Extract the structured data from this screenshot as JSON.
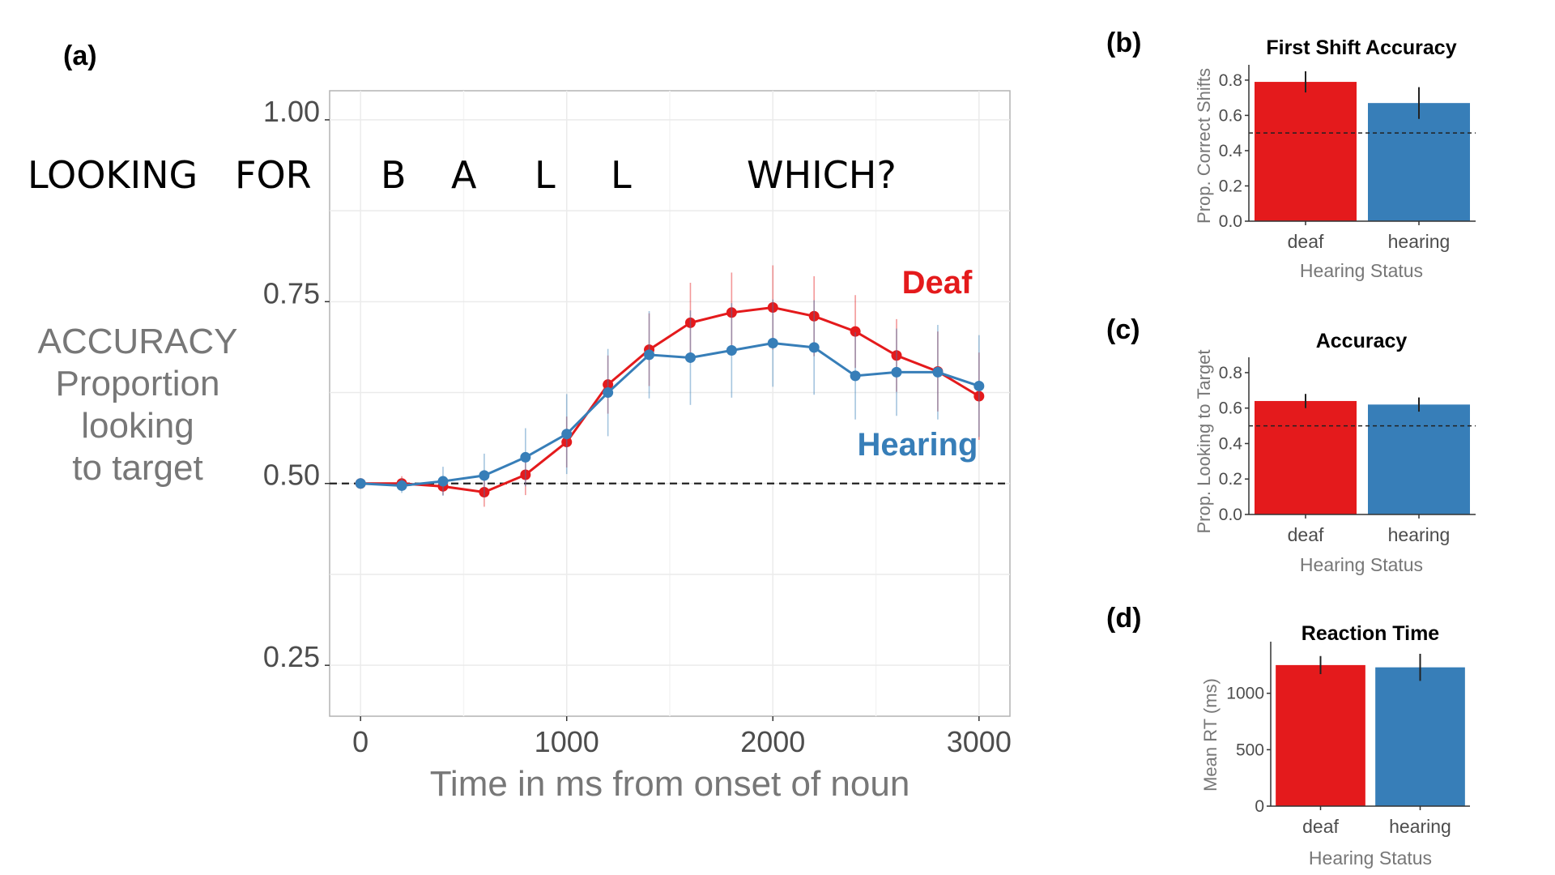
{
  "chart_data": [
    {
      "panel": "(a)",
      "type": "line",
      "word_labels": [
        "LOOKING",
        "FOR",
        "B",
        "A",
        "L",
        "L",
        "WHICH?"
      ],
      "ylabel_lines": [
        "ACCURACY",
        "Proportion",
        "looking",
        "to target"
      ],
      "xlabel": "Time in ms from onset of noun",
      "xlim": [
        -150,
        3150
      ],
      "ylim": [
        0.18,
        1.04
      ],
      "xticks": [
        0,
        1000,
        2000,
        3000
      ],
      "xtick_labels": [
        "0",
        "1000",
        "2000",
        "3000"
      ],
      "yticks": [
        0.25,
        0.5,
        0.75,
        1.0
      ],
      "ytick_labels": [
        "0.25",
        "0.50",
        "0.75",
        "1.00"
      ],
      "reference_line": 0.5,
      "grid": true,
      "x": [
        0,
        200,
        400,
        600,
        800,
        1000,
        1200,
        1400,
        1600,
        1800,
        2000,
        2200,
        2400,
        2600,
        2800,
        3000
      ],
      "series": [
        {
          "name": "Deaf",
          "color": "#e41a1c",
          "values": [
            0.5,
            0.5,
            0.496,
            0.488,
            0.512,
            0.557,
            0.636,
            0.684,
            0.721,
            0.735,
            0.742,
            0.73,
            0.709,
            0.676,
            0.654,
            0.62
          ],
          "err": [
            0.006,
            0.01,
            0.012,
            0.02,
            0.028,
            0.035,
            0.04,
            0.05,
            0.055,
            0.055,
            0.058,
            0.055,
            0.05,
            0.05,
            0.055,
            0.06
          ]
        },
        {
          "name": "Hearing",
          "color": "#377eb8",
          "values": [
            0.5,
            0.497,
            0.503,
            0.511,
            0.536,
            0.568,
            0.625,
            0.677,
            0.673,
            0.683,
            0.693,
            0.687,
            0.648,
            0.653,
            0.653,
            0.634
          ],
          "err": [
            0.006,
            0.01,
            0.02,
            0.03,
            0.04,
            0.055,
            0.06,
            0.06,
            0.065,
            0.065,
            0.06,
            0.065,
            0.06,
            0.06,
            0.065,
            0.07
          ]
        }
      ]
    },
    {
      "panel": "(b)",
      "type": "bar",
      "title": "First Shift Accuracy",
      "categories": [
        "deaf",
        "hearing"
      ],
      "values": [
        0.79,
        0.67
      ],
      "err": [
        0.06,
        0.09
      ],
      "colors": [
        "#e41a1c",
        "#377eb8"
      ],
      "ylabel": "Prop. Correct Shifts",
      "xlabel": "Hearing Status",
      "ylim": [
        0,
        0.85
      ],
      "yticks": [
        0,
        0.2,
        0.4,
        0.6,
        0.8
      ],
      "ytick_labels": [
        "0.0",
        "0.2",
        "0.4",
        "0.6",
        "0.8"
      ],
      "reference_line": 0.5
    },
    {
      "panel": "(c)",
      "type": "bar",
      "title": "Accuracy",
      "categories": [
        "deaf",
        "hearing"
      ],
      "values": [
        0.64,
        0.62
      ],
      "err": [
        0.04,
        0.04
      ],
      "colors": [
        "#e41a1c",
        "#377eb8"
      ],
      "ylabel": "Prop. Looking to Target",
      "xlabel": "Hearing Status",
      "ylim": [
        0,
        0.85
      ],
      "yticks": [
        0,
        0.2,
        0.4,
        0.6,
        0.8
      ],
      "ytick_labels": [
        "0.0",
        "0.2",
        "0.4",
        "0.6",
        "0.8"
      ],
      "reference_line": 0.5
    },
    {
      "panel": "(d)",
      "type": "bar",
      "title": "Reaction Time",
      "categories": [
        "deaf",
        "hearing"
      ],
      "values": [
        1250,
        1230
      ],
      "err": [
        80,
        120
      ],
      "colors": [
        "#e41a1c",
        "#377eb8"
      ],
      "ylabel": "Mean RT (ms)",
      "xlabel": "Hearing Status",
      "ylim": [
        0,
        1400
      ],
      "yticks": [
        0,
        500,
        1000
      ],
      "ytick_labels": [
        "0",
        "500",
        "1000"
      ]
    }
  ]
}
